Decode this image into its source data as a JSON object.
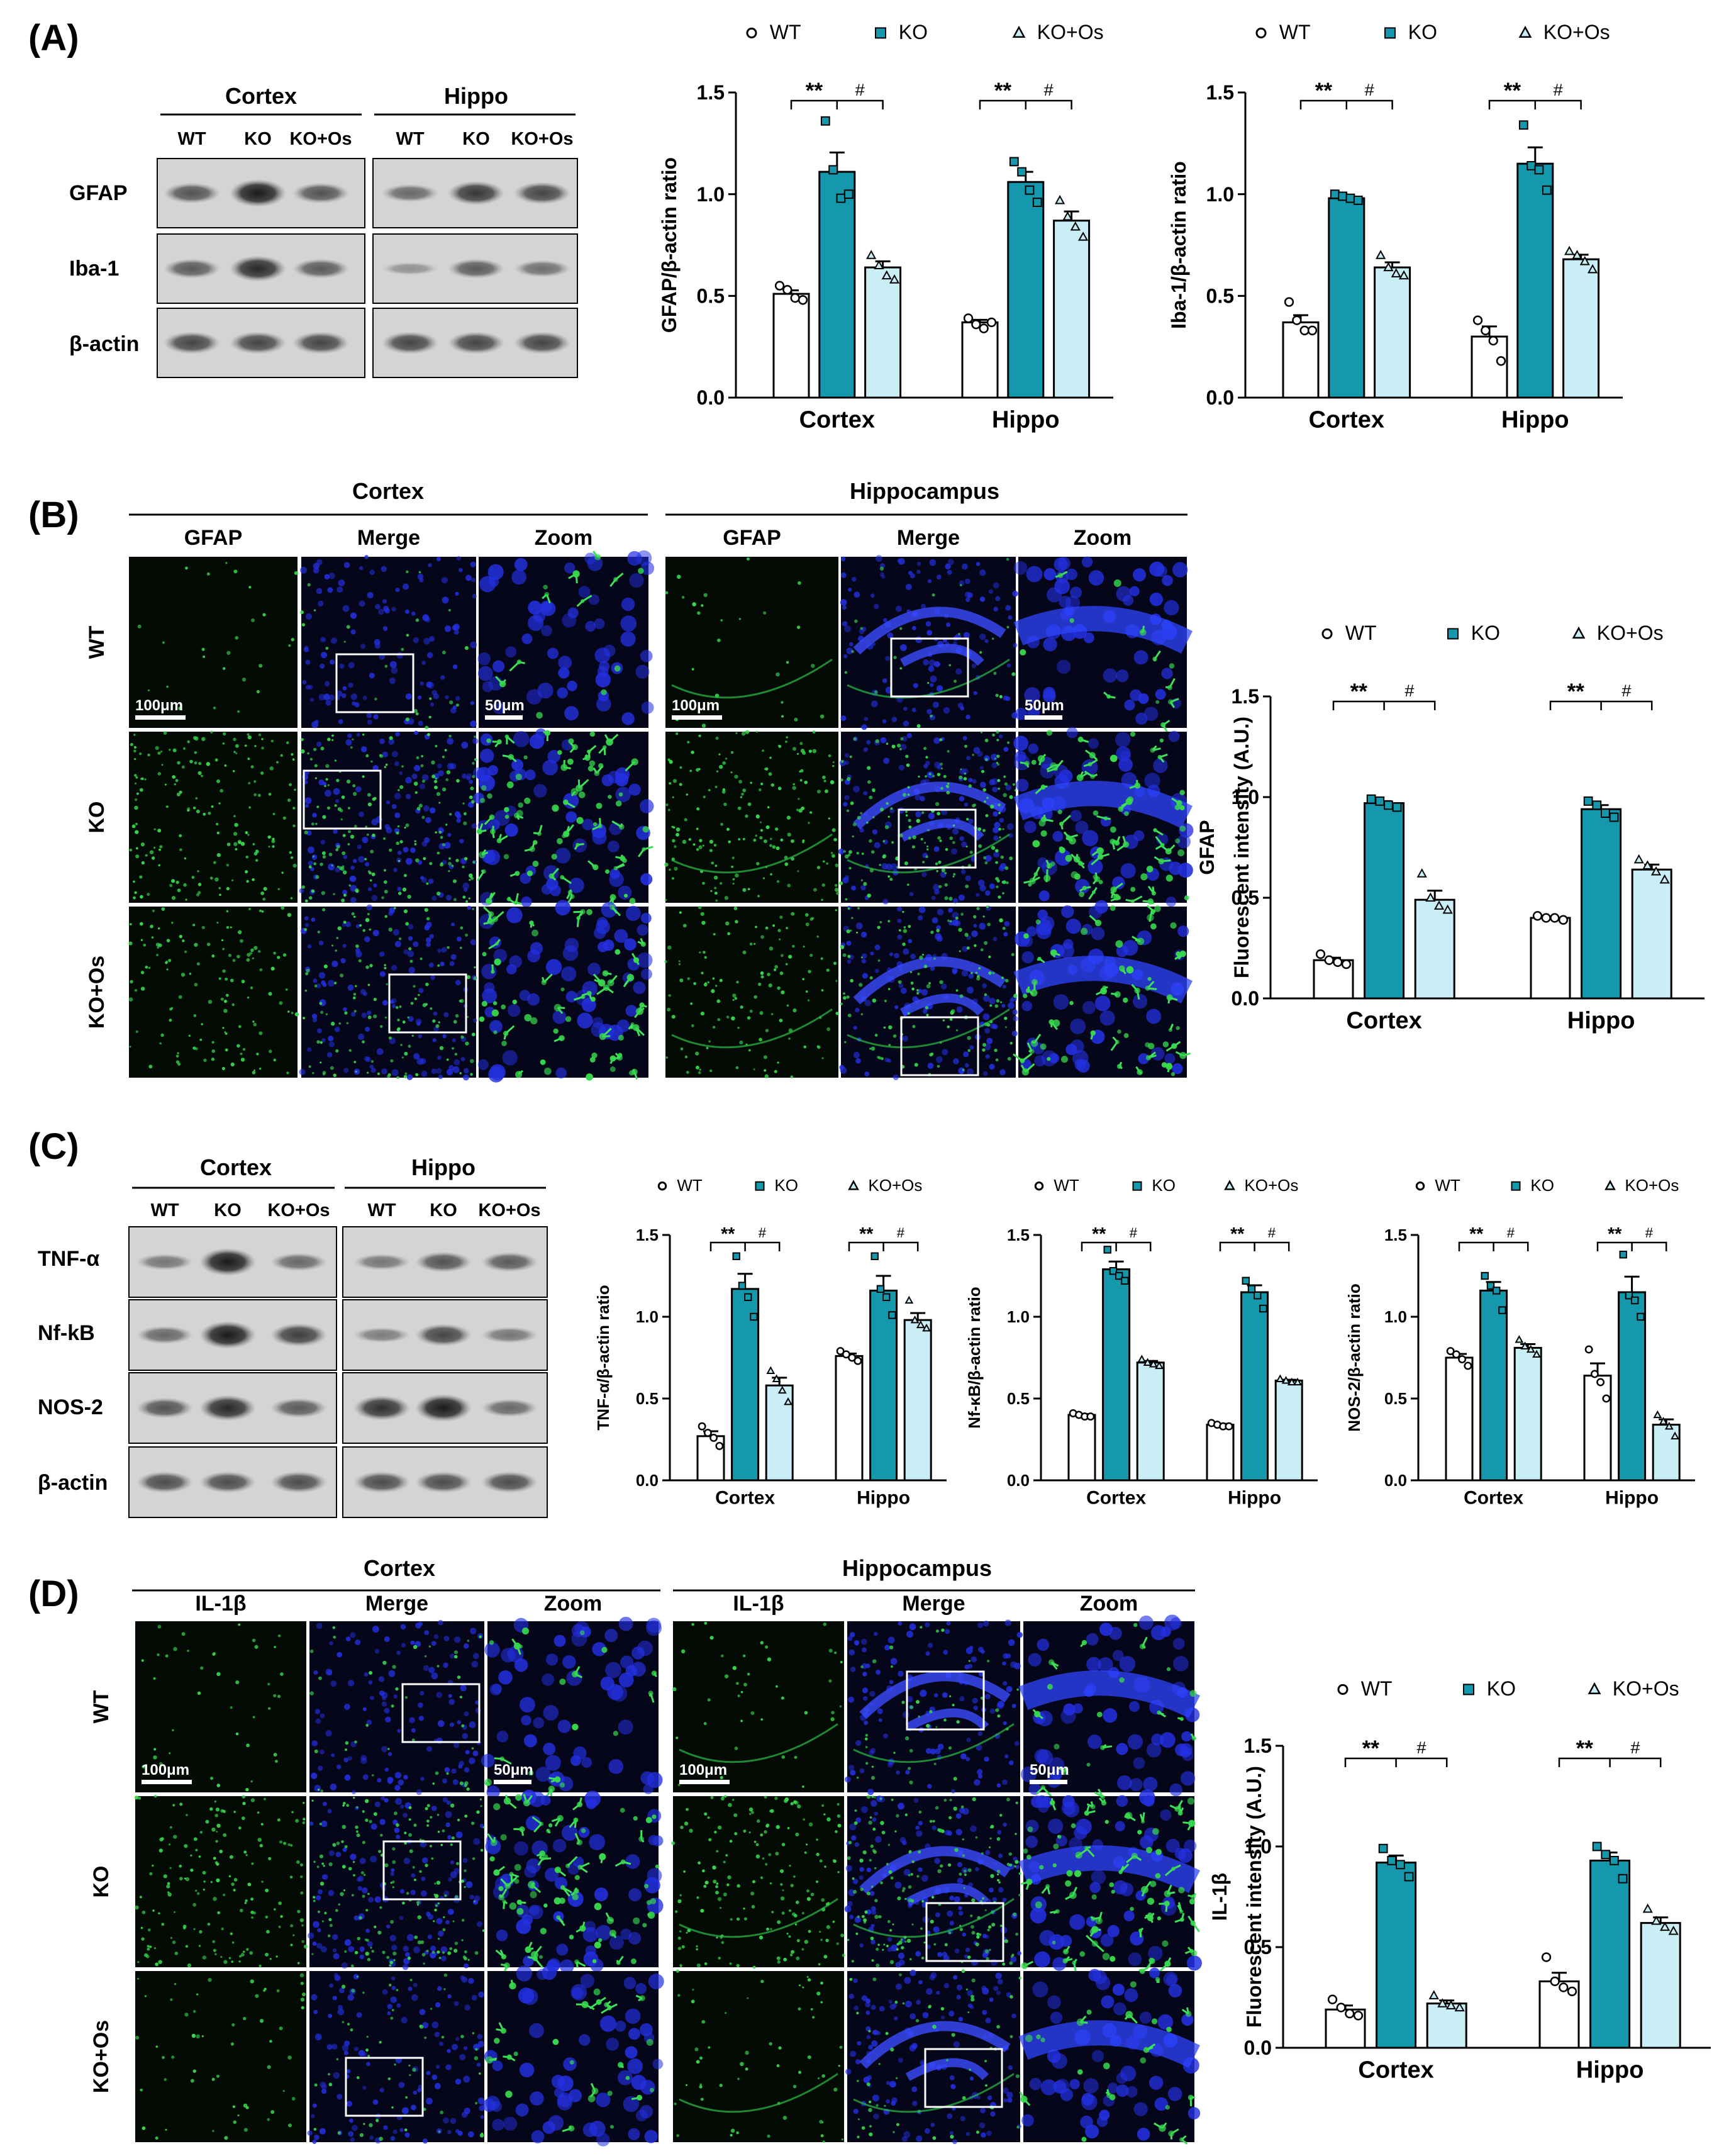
{
  "panels": {
    "A": {
      "label": "(A)",
      "blot": {
        "regions": [
          "Cortex",
          "Hippo"
        ],
        "lanes": [
          "WT",
          "KO",
          "KO+Os"
        ],
        "proteins": [
          "GFAP",
          "Iba-1",
          "β-actin"
        ]
      }
    },
    "B": {
      "label": "(B)",
      "regions": [
        "Cortex",
        "Hippocampus"
      ],
      "columns": [
        "GFAP",
        "Merge",
        "Zoom"
      ],
      "rows": [
        "WT",
        "KO",
        "KO+Os"
      ],
      "scalebars": [
        "100μm",
        "50μm"
      ]
    },
    "C": {
      "label": "(C)",
      "blot": {
        "regions": [
          "Cortex",
          "Hippo"
        ],
        "lanes": [
          "WT",
          "KO",
          "KO+Os"
        ],
        "proteins": [
          "TNF-α",
          "Nf-kB",
          "NOS-2",
          "β-actin"
        ]
      }
    },
    "D": {
      "label": "(D)",
      "regions": [
        "Cortex",
        "Hippocampus"
      ],
      "columns": [
        "IL-1β",
        "Merge",
        "Zoom"
      ],
      "rows": [
        "WT",
        "KO",
        "KO+Os"
      ],
      "scalebars": [
        "100μm",
        "50μm"
      ]
    }
  },
  "legend": [
    "WT",
    "KO",
    "KO+Os"
  ],
  "colors": {
    "WT": "#ffffff",
    "KO": "#1597ac",
    "KOOs": "#c9eef6",
    "stroke": "#000000"
  },
  "significance": [
    "**",
    "#"
  ],
  "chart_data": [
    {
      "id": "A1",
      "type": "bar",
      "categories": [
        "Cortex",
        "Hippo"
      ],
      "ylabel": "GFAP/β-actin ratio",
      "ylim": [
        0,
        1.5
      ],
      "yticks": [
        "0.0",
        "0.5",
        "1.0",
        "1.5"
      ],
      "series": [
        {
          "name": "WT",
          "values": [
            0.51,
            0.37
          ],
          "points": [
            [
              0.55,
              0.53,
              0.49,
              0.48
            ],
            [
              0.39,
              0.36,
              0.34,
              0.37
            ]
          ]
        },
        {
          "name": "KO",
          "values": [
            1.11,
            1.06
          ],
          "points": [
            [
              1.36,
              1.12,
              0.98,
              1.0
            ],
            [
              1.16,
              1.11,
              1.02,
              0.96
            ]
          ]
        },
        {
          "name": "KO+Os",
          "values": [
            0.64,
            0.87
          ],
          "points": [
            [
              0.7,
              0.65,
              0.6,
              0.58
            ],
            [
              0.97,
              0.89,
              0.84,
              0.79
            ]
          ]
        }
      ]
    },
    {
      "id": "A2",
      "type": "bar",
      "categories": [
        "Cortex",
        "Hippo"
      ],
      "ylabel": "Iba-1/β-actin ratio",
      "ylim": [
        0,
        1.5
      ],
      "yticks": [
        "0.0",
        "0.5",
        "1.0",
        "1.5"
      ],
      "series": [
        {
          "name": "WT",
          "values": [
            0.37,
            0.3
          ],
          "points": [
            [
              0.47,
              0.38,
              0.33,
              0.33
            ],
            [
              0.38,
              0.33,
              0.28,
              0.18
            ]
          ]
        },
        {
          "name": "KO",
          "values": [
            0.98,
            1.15
          ],
          "points": [
            [
              1.0,
              0.99,
              0.98,
              0.97
            ],
            [
              1.34,
              1.14,
              1.12,
              1.02
            ]
          ]
        },
        {
          "name": "KO+Os",
          "values": [
            0.64,
            0.68
          ],
          "points": [
            [
              0.7,
              0.64,
              0.61,
              0.6
            ],
            [
              0.72,
              0.7,
              0.67,
              0.63
            ]
          ]
        }
      ]
    },
    {
      "id": "B1",
      "type": "bar",
      "categories": [
        "Cortex",
        "Hippo"
      ],
      "ylabel": "GFAP",
      "ylabel2": "Fluorescent intensity  (A.U.)",
      "ylim": [
        0,
        1.5
      ],
      "yticks": [
        "0.0",
        "0.5",
        "1.0",
        "1.5"
      ],
      "series": [
        {
          "name": "WT",
          "values": [
            0.19,
            0.4
          ],
          "points": [
            [
              0.22,
              0.19,
              0.18,
              0.17
            ],
            [
              0.41,
              0.4,
              0.4,
              0.39
            ]
          ]
        },
        {
          "name": "KO",
          "values": [
            0.97,
            0.94
          ],
          "points": [
            [
              0.99,
              0.98,
              0.96,
              0.95
            ],
            [
              0.98,
              0.96,
              0.92,
              0.9
            ]
          ]
        },
        {
          "name": "KO+Os",
          "values": [
            0.49,
            0.64
          ],
          "points": [
            [
              0.62,
              0.5,
              0.46,
              0.44
            ],
            [
              0.69,
              0.66,
              0.63,
              0.59
            ]
          ]
        }
      ]
    },
    {
      "id": "C1",
      "type": "bar",
      "categories": [
        "Cortex",
        "Hippo"
      ],
      "ylabel": "TNF-α/β-actin ratio",
      "ylim": [
        0,
        1.5
      ],
      "yticks": [
        "0.0",
        "0.5",
        "1.0",
        "1.5"
      ],
      "series": [
        {
          "name": "WT",
          "values": [
            0.27,
            0.76
          ],
          "points": [
            [
              0.33,
              0.29,
              0.26,
              0.21
            ],
            [
              0.79,
              0.77,
              0.75,
              0.73
            ]
          ]
        },
        {
          "name": "KO",
          "values": [
            1.17,
            1.16
          ],
          "points": [
            [
              1.37,
              1.19,
              1.12,
              1.0
            ],
            [
              1.37,
              1.17,
              1.12,
              1.01
            ]
          ]
        },
        {
          "name": "KO+Os",
          "values": [
            0.58,
            0.98
          ],
          "points": [
            [
              0.67,
              0.62,
              0.55,
              0.48
            ],
            [
              1.1,
              0.98,
              0.95,
              0.93
            ]
          ]
        }
      ]
    },
    {
      "id": "C2",
      "type": "bar",
      "categories": [
        "Cortex",
        "Hippo"
      ],
      "ylabel": "Nf-κB/β-actin ratio",
      "ylim": [
        0,
        1.5
      ],
      "yticks": [
        "0.0",
        "0.5",
        "1.0",
        "1.5"
      ],
      "series": [
        {
          "name": "WT",
          "values": [
            0.4,
            0.34
          ],
          "points": [
            [
              0.41,
              0.4,
              0.39,
              0.39
            ],
            [
              0.35,
              0.34,
              0.33,
              0.33
            ]
          ]
        },
        {
          "name": "KO",
          "values": [
            1.29,
            1.15
          ],
          "points": [
            [
              1.41,
              1.28,
              1.25,
              1.22
            ],
            [
              1.22,
              1.17,
              1.13,
              1.05
            ]
          ]
        },
        {
          "name": "KO+Os",
          "values": [
            0.72,
            0.61
          ],
          "points": [
            [
              0.74,
              0.72,
              0.71,
              0.7
            ],
            [
              0.62,
              0.61,
              0.6,
              0.6
            ]
          ]
        }
      ]
    },
    {
      "id": "C3",
      "type": "bar",
      "categories": [
        "Cortex",
        "Hippo"
      ],
      "ylabel": "NOS-2/β-actin ratio",
      "ylim": [
        0,
        1.5
      ],
      "yticks": [
        "0.0",
        "0.5",
        "1.0",
        "1.5"
      ],
      "series": [
        {
          "name": "WT",
          "values": [
            0.75,
            0.64
          ],
          "points": [
            [
              0.79,
              0.77,
              0.74,
              0.7
            ],
            [
              0.8,
              0.65,
              0.6,
              0.5
            ]
          ]
        },
        {
          "name": "KO",
          "values": [
            1.16,
            1.15
          ],
          "points": [
            [
              1.25,
              1.19,
              1.16,
              1.04
            ],
            [
              1.38,
              1.13,
              1.1,
              1.0
            ]
          ]
        },
        {
          "name": "KO+Os",
          "values": [
            0.81,
            0.34
          ],
          "points": [
            [
              0.86,
              0.82,
              0.8,
              0.77
            ],
            [
              0.4,
              0.36,
              0.33,
              0.27
            ]
          ]
        }
      ]
    },
    {
      "id": "D1",
      "type": "bar",
      "categories": [
        "Cortex",
        "Hippo"
      ],
      "ylabel": "IL-1β",
      "ylabel2": "Fluorescent intensity  (A.U.)",
      "ylim": [
        0,
        1.5
      ],
      "yticks": [
        "0.0",
        "0.5",
        "1.0",
        "1.5"
      ],
      "series": [
        {
          "name": "WT",
          "values": [
            0.19,
            0.33
          ],
          "points": [
            [
              0.24,
              0.2,
              0.17,
              0.16
            ],
            [
              0.45,
              0.33,
              0.3,
              0.28
            ]
          ]
        },
        {
          "name": "KO",
          "values": [
            0.92,
            0.93
          ],
          "points": [
            [
              0.99,
              0.93,
              0.91,
              0.85
            ],
            [
              1.0,
              0.96,
              0.93,
              0.84
            ]
          ]
        },
        {
          "name": "KO+Os",
          "values": [
            0.22,
            0.62
          ],
          "points": [
            [
              0.26,
              0.22,
              0.21,
              0.2
            ],
            [
              0.69,
              0.63,
              0.6,
              0.58
            ]
          ]
        }
      ]
    }
  ]
}
